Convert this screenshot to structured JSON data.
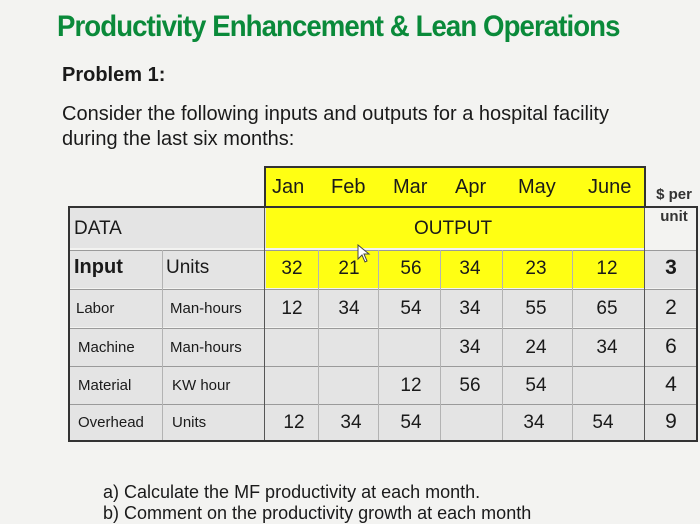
{
  "title": "Productivity Enhancement & Lean Operations",
  "problem": "Problem 1:",
  "prompt_line1": "Consider the following inputs and outputs for a hospital facility",
  "prompt_line2": "during the last six months:",
  "months": [
    "Jan",
    "Feb",
    "Mar",
    "Apr",
    "May",
    "June"
  ],
  "per_unit_line1": "$ per",
  "per_unit_line2": "unit",
  "data_label": "DATA",
  "output_label": "OUTPUT",
  "headers": {
    "input": "Input",
    "units": "Units"
  },
  "output_row": {
    "values": [
      "32",
      "21",
      "56",
      "34",
      "23",
      "12"
    ],
    "price": "3"
  },
  "rows": [
    {
      "label": "Labor",
      "unit": "Man-hours",
      "values": [
        "12",
        "34",
        "54",
        "34",
        "55",
        "65"
      ],
      "price": "2"
    },
    {
      "label": "Machine",
      "unit": "Man-hours",
      "values": [
        "",
        "",
        "",
        "34",
        "24",
        "34"
      ],
      "price": "6"
    },
    {
      "label": "Material",
      "unit": "KW hour",
      "values": [
        "",
        "",
        "12",
        "56",
        "54",
        ""
      ],
      "price": "4"
    },
    {
      "label": "Overhead",
      "unit": "Units",
      "values": [
        "12",
        "34",
        "54",
        "",
        "34",
        "54"
      ],
      "price": "9"
    }
  ],
  "question_a": "a) Calculate the MF productivity at each month.",
  "question_b": "b) Comment on the productivity growth at each month"
}
